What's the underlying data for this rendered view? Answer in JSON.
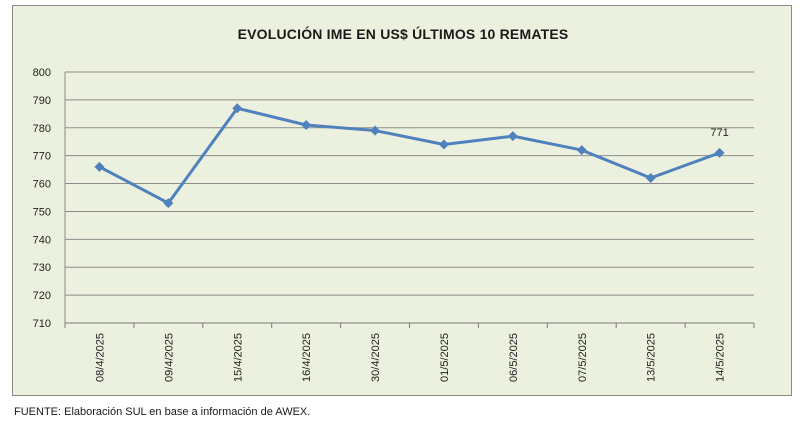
{
  "chart_data": {
    "type": "line",
    "title": "EVOLUCIÓN IME EN US$ ÚLTIMOS 10 REMATES",
    "xlabel": "",
    "ylabel": "",
    "categories": [
      "08/4/2025",
      "09/4/2025",
      "15/4/2025",
      "16/4/2025",
      "30/4/2025",
      "01/5/2025",
      "06/5/2025",
      "07/5/2025",
      "13/5/2025",
      "14/5/2025"
    ],
    "series": [
      {
        "values": [
          766,
          753,
          787,
          781,
          779,
          774,
          777,
          772,
          762,
          771
        ]
      }
    ],
    "ylim": [
      710,
      800
    ],
    "yticks": [
      710,
      720,
      730,
      740,
      750,
      760,
      770,
      780,
      790,
      800
    ],
    "grid": true,
    "legend": "none",
    "data_labels": [
      {
        "index": 9,
        "text": "771"
      }
    ],
    "colors": {
      "line": "#4f81bd",
      "background": "#ebf1de",
      "grid": "#8c8c8c"
    }
  },
  "footer": {
    "source": "FUENTE: Elaboración SUL en base a información de AWEX."
  }
}
